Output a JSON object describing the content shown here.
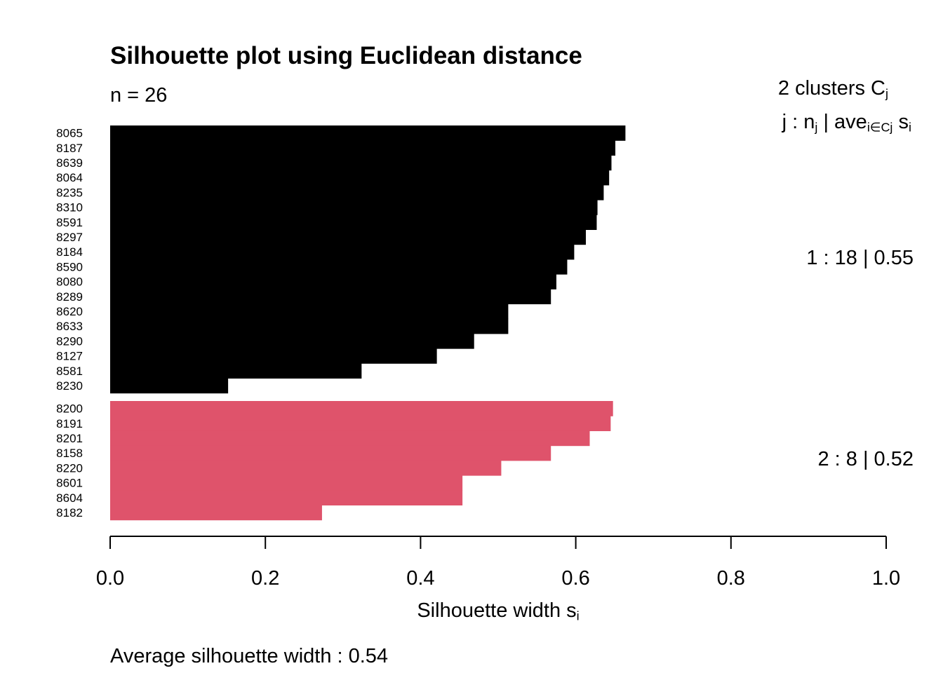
{
  "chart_data": {
    "type": "bar",
    "orientation": "horizontal",
    "title": "Silhouette plot using  Euclidean  distance",
    "n_label": "n = 26",
    "legend_header_1": "2  clusters  C",
    "legend_header_1_sub": "j",
    "legend_header_2_a": "j :  n",
    "legend_header_2_sub1": "j",
    "legend_header_2_b": " | ave",
    "legend_header_2_sub2": "i∈Cj",
    "legend_header_2_c": "  s",
    "legend_header_2_sub3": "i",
    "xlabel": "Silhouette width s",
    "xlabel_sub": "i",
    "footer": "Average silhouette width :  0.54",
    "xlim": [
      0,
      1
    ],
    "ticks": [
      "0.0",
      "0.2",
      "0.4",
      "0.6",
      "0.8",
      "1.0"
    ],
    "clusters": [
      {
        "label": "1 :   18  |  0.55",
        "color": "#000000",
        "labels": [
          "8065",
          "8187",
          "8639",
          "8064",
          "8235",
          "8310",
          "8591",
          "8297",
          "8184",
          "8590",
          "8080",
          "8289",
          "8620",
          "8633",
          "8290",
          "8127",
          "8581",
          "8230"
        ],
        "values": [
          0.664,
          0.651,
          0.646,
          0.643,
          0.636,
          0.628,
          0.627,
          0.613,
          0.598,
          0.589,
          0.575,
          0.568,
          0.513,
          0.513,
          0.469,
          0.421,
          0.324,
          0.152
        ]
      },
      {
        "label": "2 :   8  |  0.52",
        "color": "#df536b",
        "labels": [
          "8200",
          "8191",
          "8201",
          "8158",
          "8220",
          "8601",
          "8604",
          "8182"
        ],
        "values": [
          0.648,
          0.645,
          0.618,
          0.568,
          0.504,
          0.454,
          0.454,
          0.273
        ]
      }
    ]
  }
}
